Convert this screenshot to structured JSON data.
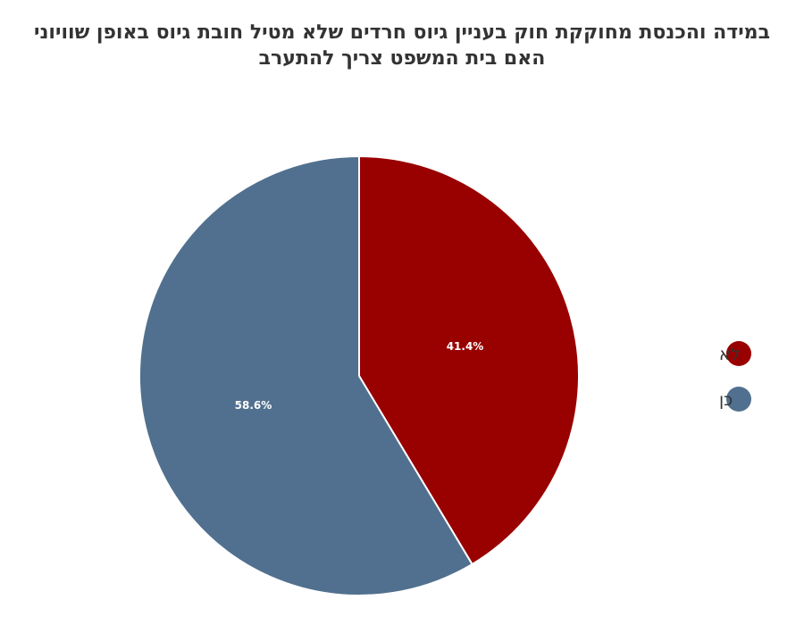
{
  "chart_data": {
    "type": "pie",
    "title": "במידה והכנסת מחוקקת חוק בעניין גיוס חרדים שלא מטיל חובת גיוס באופן שוויוני האם בית המשפט צריך להתערב",
    "title_lines": [
      "במידה והכנסת מחוקקת חוק בעניין גיוס חרדים שלא מטיל חובת גיוס באופן שוויוני",
      "האם בית המשפט צריך להתערב"
    ],
    "slices": [
      {
        "label": "לא",
        "value": 41.4,
        "display": "41.4%",
        "color": "#990000"
      },
      {
        "label": "כן",
        "value": 58.6,
        "display": "58.6%",
        "color": "#51708F"
      }
    ],
    "start_angle_deg": 0,
    "direction": "clockwise",
    "legend": {
      "position": "right"
    }
  }
}
